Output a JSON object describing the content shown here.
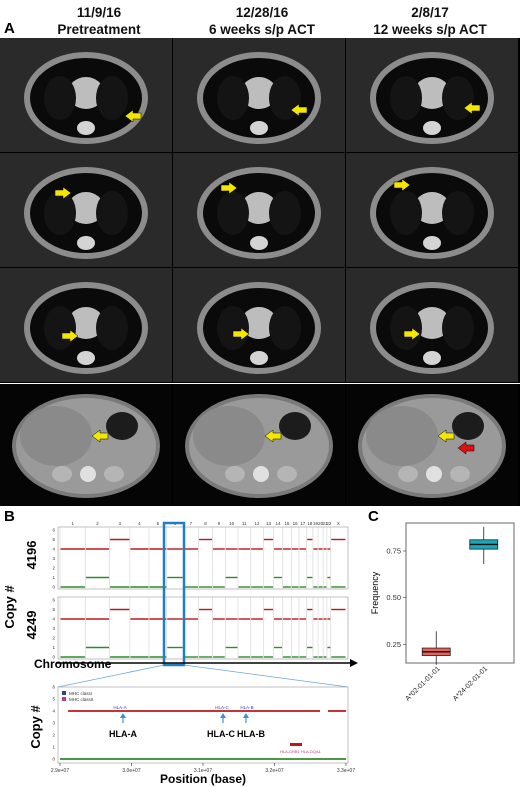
{
  "panel_a": {
    "letter": "A",
    "columns": [
      {
        "date": "11/9/16",
        "label": "Pretreatment"
      },
      {
        "date": "12/28/16",
        "label": "6 weeks s/p ACT"
      },
      {
        "date": "2/8/17",
        "label": "12 weeks s/p ACT"
      }
    ],
    "rows": 4,
    "arrow_color": "#f5e600",
    "red_arrow_color": "#e01010"
  },
  "panel_b": {
    "letter": "B",
    "sample_labels": [
      "4196",
      "4249"
    ],
    "y_axis_label": "Copy #",
    "x_axis_label": "Chromosome",
    "chromosomes": [
      "1",
      "2",
      "3",
      "4",
      "5",
      "6",
      "7",
      "8",
      "9",
      "10",
      "11",
      "12",
      "13",
      "14",
      "15",
      "16",
      "17",
      "18",
      "19",
      "20",
      "21",
      "22",
      "X"
    ],
    "y_ticks": [
      "0",
      "1",
      "2",
      "3",
      "4",
      "5",
      "6"
    ],
    "highlight_color": "#1f7fc4",
    "zoom": {
      "y_axis_label": "Copy #",
      "x_axis_label": "Position (base)",
      "x_ticks": [
        "2.9e+07",
        "3.0e+07",
        "3.1e+07",
        "3.2e+07",
        "3.3e+07"
      ],
      "y_ticks": [
        "0",
        "1",
        "2",
        "3",
        "4",
        "5",
        "6"
      ],
      "legend": [
        "MHC classI",
        "MHC classII"
      ],
      "genes": [
        "HLA-A",
        "HLA-C",
        "HLA-B"
      ]
    }
  },
  "panel_c": {
    "letter": "C",
    "chart_data": {
      "type": "box",
      "categories": [
        "A*02-01-01-01",
        "A*24-02-01-01"
      ],
      "ylabel": "Frequency",
      "y_ticks": [
        "0.25",
        "0.50",
        "0.75"
      ],
      "ylim": [
        0.15,
        0.9
      ],
      "series": [
        {
          "whisker_low": 0.14,
          "q1": 0.19,
          "median": 0.21,
          "q3": 0.23,
          "whisker_high": 0.32,
          "color": "#e8605a"
        },
        {
          "whisker_low": 0.68,
          "q1": 0.76,
          "median": 0.785,
          "q3": 0.81,
          "whisker_high": 0.88,
          "color": "#1aa7b8"
        }
      ]
    }
  }
}
